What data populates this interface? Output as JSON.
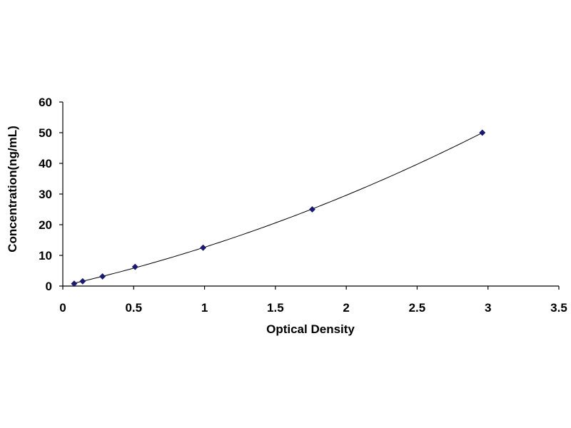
{
  "chart_data": {
    "type": "scatter",
    "title": "",
    "xlabel": "Optical Density",
    "ylabel": "Concentration(ng/mL)",
    "xlim": [
      0,
      3.5
    ],
    "ylim": [
      0,
      60
    ],
    "x_ticks": [
      0,
      0.5,
      1,
      1.5,
      2,
      2.5,
      3,
      3.5
    ],
    "x_tick_labels": [
      "0",
      "0.5",
      "1",
      "1.5",
      "2",
      "2.5",
      "3",
      "3.5"
    ],
    "y_ticks": [
      0,
      10,
      20,
      30,
      40,
      50,
      60
    ],
    "y_tick_labels": [
      "0",
      "10",
      "20",
      "30",
      "40",
      "50",
      "60"
    ],
    "grid": false,
    "legend": "none",
    "series": [
      {
        "x": [
          0.08,
          0.14,
          0.28,
          0.51,
          0.99,
          1.76,
          2.96
        ],
        "y": [
          0.78,
          1.56,
          3.13,
          6.25,
          12.5,
          25,
          50
        ],
        "marker": "diamond",
        "color": "#1a1a6e",
        "trendline": "polynomial"
      }
    ]
  }
}
